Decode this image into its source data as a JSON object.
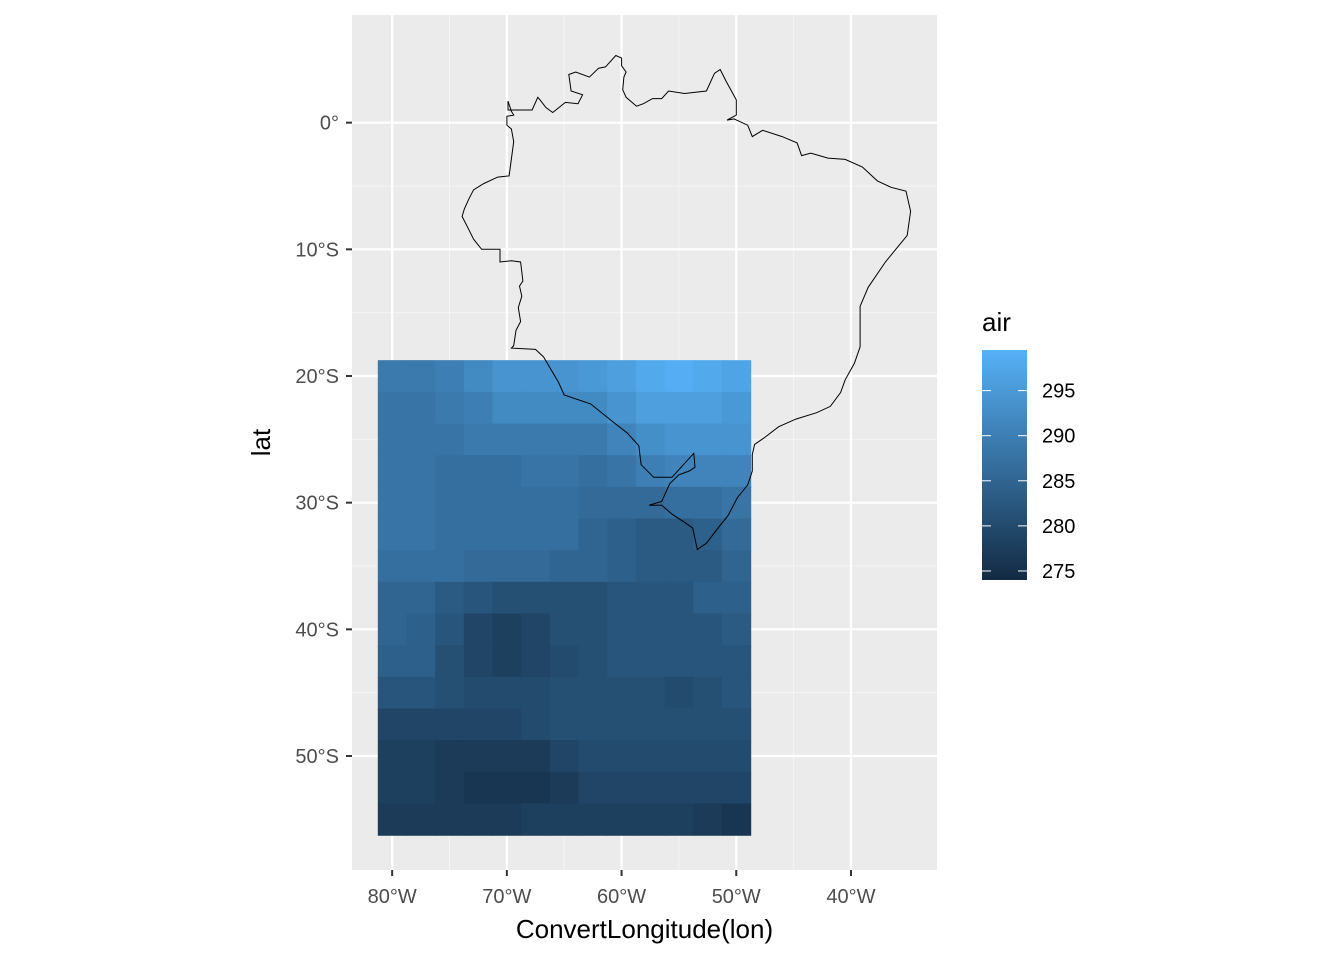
{
  "chart_data": {
    "type": "heatmap",
    "title": "",
    "xlabel": "ConvertLongitude(lon)",
    "ylabel": "lat",
    "xlim": [
      -83.5,
      -32.5
    ],
    "ylim": [
      -59,
      8.5
    ],
    "x_ticks": [
      {
        "value": -80,
        "label": "80°W"
      },
      {
        "value": -70,
        "label": "70°W"
      },
      {
        "value": -60,
        "label": "60°W"
      },
      {
        "value": -50,
        "label": "50°W"
      },
      {
        "value": -40,
        "label": "40°W"
      }
    ],
    "y_ticks": [
      {
        "value": 0,
        "label": "0°"
      },
      {
        "value": -10,
        "label": "10°S"
      },
      {
        "value": -20,
        "label": "20°S"
      },
      {
        "value": -30,
        "label": "30°S"
      },
      {
        "value": -40,
        "label": "40°S"
      },
      {
        "value": -50,
        "label": "50°S"
      }
    ],
    "grid": true,
    "legend": {
      "title": "air",
      "position": "right",
      "scale": "continuous",
      "range": [
        274,
        299.5
      ],
      "low_color": "#132B43",
      "high_color": "#56B1F7",
      "breaks": [
        {
          "value": 295,
          "label": "295"
        },
        {
          "value": 290,
          "label": "290"
        },
        {
          "value": 285,
          "label": "285"
        },
        {
          "value": 280,
          "label": "280"
        },
        {
          "value": 275,
          "label": "275"
        }
      ]
    },
    "grid_lon": [
      -80,
      -77.5,
      -75,
      -72.5,
      -70,
      -67.5,
      -65,
      -62.5,
      -60,
      -57.5,
      -55,
      -52.5,
      -50
    ],
    "grid_lat": [
      -20,
      -22.5,
      -25,
      -27.5,
      -30,
      -32.5,
      -35,
      -37.5,
      -40,
      -42.5,
      -45,
      -47.5,
      -50,
      -52.5,
      -55
    ],
    "cell_size_deg": 2.5,
    "air": [
      [
        289,
        289,
        290,
        292,
        294,
        294,
        294,
        295,
        296,
        298,
        299,
        298,
        297
      ],
      [
        288,
        288,
        289,
        290,
        292,
        292,
        292,
        292,
        294,
        296,
        296,
        296,
        295
      ],
      [
        288,
        288,
        288,
        289,
        289,
        289,
        289,
        289,
        291,
        293,
        294,
        294,
        294
      ],
      [
        288,
        288,
        287,
        287,
        287,
        288,
        288,
        287,
        288,
        290,
        291,
        291,
        291
      ],
      [
        288,
        288,
        287,
        287,
        287,
        287,
        287,
        286,
        286,
        286,
        287,
        287,
        288
      ],
      [
        288,
        288,
        287,
        287,
        287,
        287,
        287,
        285,
        284,
        283,
        283,
        284,
        286
      ],
      [
        287,
        287,
        287,
        286,
        286,
        286,
        285,
        285,
        284,
        283,
        283,
        283,
        285
      ],
      [
        285,
        285,
        283,
        282,
        281,
        281,
        281,
        281,
        282,
        282,
        282,
        284,
        284
      ],
      [
        285,
        284,
        282,
        279,
        278,
        279,
        281,
        281,
        282,
        282,
        282,
        282,
        283
      ],
      [
        284,
        284,
        281,
        279,
        278,
        279,
        280,
        281,
        282,
        282,
        282,
        282,
        282
      ],
      [
        282,
        282,
        281,
        280,
        280,
        280,
        281,
        281,
        281,
        281,
        280,
        281,
        282
      ],
      [
        279,
        279,
        279,
        279,
        279,
        280,
        281,
        281,
        281,
        281,
        281,
        281,
        281
      ],
      [
        278,
        278,
        277,
        277,
        277,
        277,
        279,
        280,
        280,
        280,
        280,
        280,
        280
      ],
      [
        278,
        278,
        277,
        276,
        276,
        276,
        277,
        279,
        279,
        279,
        279,
        279,
        279
      ],
      [
        277,
        277,
        277,
        277,
        277,
        278,
        278,
        278,
        278,
        278,
        278,
        277,
        276
      ]
    ],
    "border": [
      [
        -60.0,
        5.1
      ],
      [
        -60.5,
        5.3
      ],
      [
        -61.4,
        4.4
      ],
      [
        -62.0,
        4.3
      ],
      [
        -62.8,
        3.6
      ],
      [
        -64.0,
        4.0
      ],
      [
        -64.6,
        3.8
      ],
      [
        -64.4,
        2.5
      ],
      [
        -63.4,
        2.2
      ],
      [
        -63.8,
        1.5
      ],
      [
        -64.9,
        1.6
      ],
      [
        -66.0,
        0.8
      ],
      [
        -66.6,
        1.2
      ],
      [
        -67.1,
        1.8
      ],
      [
        -67.3,
        2.0
      ],
      [
        -67.8,
        1.0
      ],
      [
        -69.9,
        1.0
      ],
      [
        -69.9,
        1.7
      ],
      [
        -69.6,
        0.9
      ],
      [
        -69.4,
        0.6
      ],
      [
        -70.0,
        0.5
      ],
      [
        -70.0,
        -0.2
      ],
      [
        -69.6,
        -0.5
      ],
      [
        -69.4,
        -1.5
      ],
      [
        -69.8,
        -4.2
      ],
      [
        -70.8,
        -4.3
      ],
      [
        -72.0,
        -4.8
      ],
      [
        -72.9,
        -5.3
      ],
      [
        -73.3,
        -6.0
      ],
      [
        -73.7,
        -6.8
      ],
      [
        -73.9,
        -7.4
      ],
      [
        -73.4,
        -8.3
      ],
      [
        -72.9,
        -9.2
      ],
      [
        -72.2,
        -10.0
      ],
      [
        -70.6,
        -10.0
      ],
      [
        -70.6,
        -11.0
      ],
      [
        -69.6,
        -10.9
      ],
      [
        -68.8,
        -11.0
      ],
      [
        -68.6,
        -12.5
      ],
      [
        -68.9,
        -12.9
      ],
      [
        -68.7,
        -13.7
      ],
      [
        -69.0,
        -14.6
      ],
      [
        -68.8,
        -15.7
      ],
      [
        -69.2,
        -16.4
      ],
      [
        -69.4,
        -17.6
      ],
      [
        -69.6,
        -17.8
      ],
      [
        -67.5,
        -17.9
      ],
      [
        -66.8,
        -18.5
      ],
      [
        -65.5,
        -20.5
      ],
      [
        -65.0,
        -21.5
      ],
      [
        -62.7,
        -22.2
      ],
      [
        -60.5,
        -23.8
      ],
      [
        -59.5,
        -24.5
      ],
      [
        -58.5,
        -25.5
      ],
      [
        -58.3,
        -27.0
      ],
      [
        -57.2,
        -28.0
      ],
      [
        -55.6,
        -28.0
      ],
      [
        -54.1,
        -26.5
      ],
      [
        -53.7,
        -26.1
      ],
      [
        -53.6,
        -27.2
      ],
      [
        -54.1,
        -27.5
      ],
      [
        -55.0,
        -27.8
      ],
      [
        -55.8,
        -28.5
      ],
      [
        -56.5,
        -29.9
      ],
      [
        -57.6,
        -30.2
      ],
      [
        -56.5,
        -30.2
      ],
      [
        -55.6,
        -30.9
      ],
      [
        -54.6,
        -31.5
      ],
      [
        -53.8,
        -32.0
      ],
      [
        -53.4,
        -33.7
      ],
      [
        -52.6,
        -33.2
      ],
      [
        -51.5,
        -31.9
      ],
      [
        -50.7,
        -31.0
      ],
      [
        -49.9,
        -29.6
      ],
      [
        -49.0,
        -28.6
      ],
      [
        -48.6,
        -27.5
      ],
      [
        -48.6,
        -26.2
      ],
      [
        -48.4,
        -25.4
      ],
      [
        -47.6,
        -24.9
      ],
      [
        -46.3,
        -24.0
      ],
      [
        -44.8,
        -23.4
      ],
      [
        -43.0,
        -22.9
      ],
      [
        -41.8,
        -22.4
      ],
      [
        -40.9,
        -21.3
      ],
      [
        -40.5,
        -20.3
      ],
      [
        -39.7,
        -19.0
      ],
      [
        -39.2,
        -17.7
      ],
      [
        -39.2,
        -14.5
      ],
      [
        -38.5,
        -13.0
      ],
      [
        -37.0,
        -11.0
      ],
      [
        -35.1,
        -8.9
      ],
      [
        -34.8,
        -7.0
      ],
      [
        -35.2,
        -5.4
      ],
      [
        -36.5,
        -5.1
      ],
      [
        -37.7,
        -4.6
      ],
      [
        -39.0,
        -3.5
      ],
      [
        -40.5,
        -2.9
      ],
      [
        -42.0,
        -2.8
      ],
      [
        -43.5,
        -2.4
      ],
      [
        -44.3,
        -2.6
      ],
      [
        -44.7,
        -1.6
      ],
      [
        -46.0,
        -1.1
      ],
      [
        -47.7,
        -0.6
      ],
      [
        -48.6,
        -1.1
      ],
      [
        -49.0,
        -0.2
      ],
      [
        -50.2,
        0.3
      ],
      [
        -50.8,
        0.2
      ],
      [
        -50.0,
        0.6
      ],
      [
        -50.0,
        1.8
      ],
      [
        -50.9,
        3.3
      ],
      [
        -51.4,
        4.2
      ],
      [
        -51.9,
        3.9
      ],
      [
        -52.6,
        2.5
      ],
      [
        -54.5,
        2.3
      ],
      [
        -55.9,
        2.5
      ],
      [
        -56.5,
        1.9
      ],
      [
        -57.3,
        1.9
      ],
      [
        -58.1,
        1.5
      ],
      [
        -58.7,
        1.3
      ],
      [
        -59.6,
        2.0
      ],
      [
        -59.9,
        2.6
      ],
      [
        -59.8,
        3.6
      ],
      [
        -59.6,
        4.0
      ],
      [
        -60.0,
        4.5
      ],
      [
        -60.0,
        5.1
      ]
    ]
  }
}
